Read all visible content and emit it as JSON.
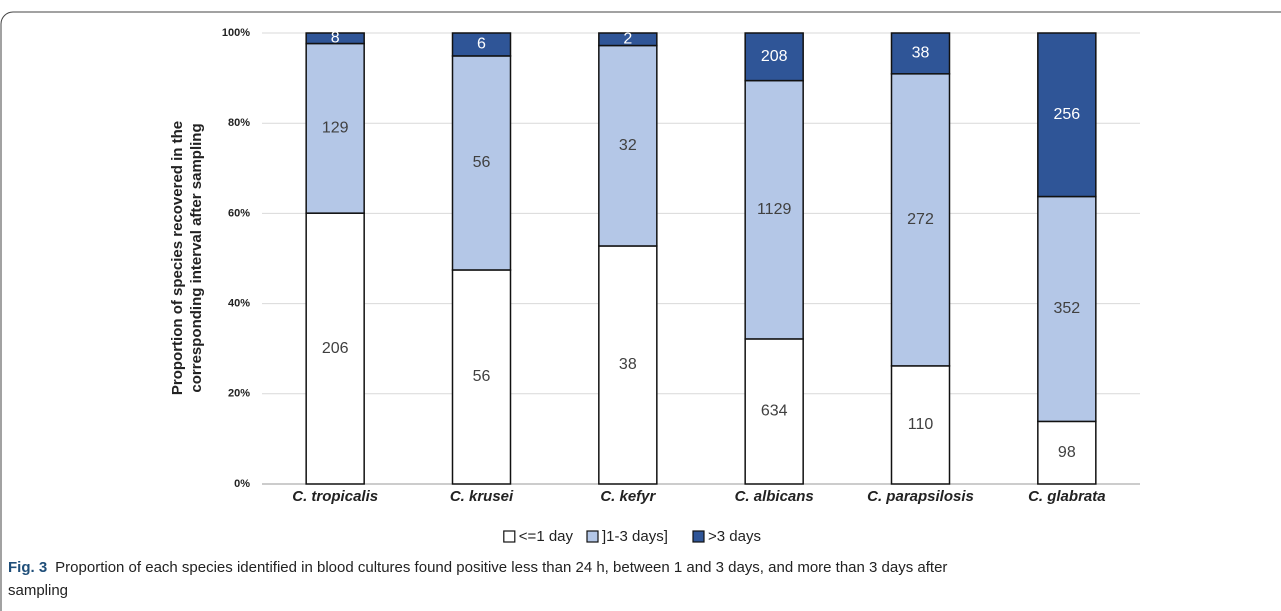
{
  "chart_data": {
    "type": "bar",
    "stacked": "percent",
    "y_label": [
      "Proportion of species recovered in the",
      "corresponding interval after sampling"
    ],
    "categories": [
      "C. tropicalis",
      "C. krusei",
      "C. kefyr",
      "C. albicans",
      "C. parapsilosis",
      "C. glabrata"
    ],
    "series": [
      {
        "name": "<=1 day",
        "color": "#ffffff",
        "values": [
          206,
          56,
          38,
          634,
          110,
          98
        ]
      },
      {
        "name": "]1-3 days]",
        "color": "#b4c7e7",
        "values": [
          129,
          56,
          32,
          1129,
          272,
          352
        ]
      },
      {
        "name": ">3 days",
        "color": "#2f5597",
        "values": [
          8,
          6,
          2,
          208,
          38,
          256
        ]
      }
    ],
    "ylim": [
      0,
      100
    ],
    "yticks": [
      {
        "value": 0,
        "label": "0%"
      },
      {
        "value": 20,
        "label": "20%"
      },
      {
        "value": 40,
        "label": "40%"
      },
      {
        "value": 60,
        "label": "60%"
      },
      {
        "value": 80,
        "label": "80%"
      },
      {
        "value": 100,
        "label": "100%"
      }
    ],
    "grid": true,
    "legend": "bottom"
  },
  "caption": {
    "label": "Fig. 3",
    "text": [
      "Proportion of each species identified in blood cultures found positive less than 24 h, between 1 and 3 days, and more than 3 days after",
      "sampling"
    ]
  }
}
